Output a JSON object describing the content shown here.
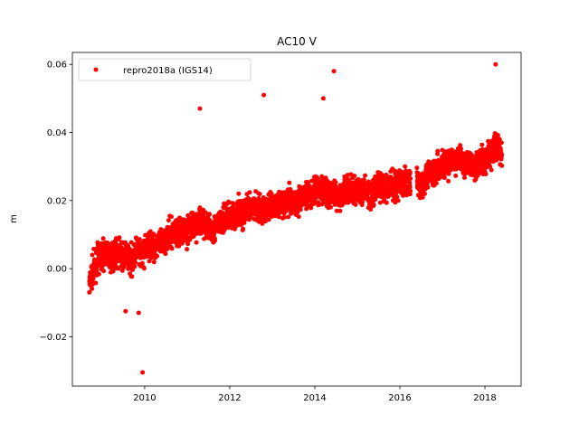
{
  "chart_data": {
    "type": "scatter",
    "title": "AC10 V",
    "xlabel": "",
    "ylabel": "m",
    "xlim": [
      2008.3,
      2018.85
    ],
    "ylim": [
      -0.0345,
      0.0635
    ],
    "xticks": [
      2010,
      2012,
      2014,
      2016,
      2018
    ],
    "xtick_labels": [
      "2010",
      "2012",
      "2014",
      "2016",
      "2018"
    ],
    "yticks": [
      -0.02,
      0.0,
      0.02,
      0.04,
      0.06
    ],
    "ytick_labels": [
      "−0.02",
      "0.00",
      "0.02",
      "0.04",
      "0.06"
    ],
    "grid": false,
    "legend_position": "top-left",
    "series": [
      {
        "name": "repro2018a (IGS14)",
        "color": "#ff0000",
        "marker": "circle",
        "x": [
          2008.7,
          2008.75,
          2008.8,
          2008.9,
          2009.0,
          2009.1,
          2009.2,
          2009.3,
          2009.4,
          2009.5,
          2009.6,
          2009.7,
          2009.8,
          2009.9,
          2010.0,
          2010.1,
          2010.2,
          2010.3,
          2010.4,
          2010.5,
          2010.6,
          2010.7,
          2010.8,
          2010.9,
          2011.0,
          2011.1,
          2011.2,
          2011.3,
          2011.4,
          2011.5,
          2011.6,
          2011.7,
          2011.8,
          2011.9,
          2012.0,
          2012.1,
          2012.2,
          2012.3,
          2012.4,
          2012.5,
          2012.6,
          2012.7,
          2012.8,
          2012.9,
          2013.0,
          2013.1,
          2013.2,
          2013.3,
          2013.4,
          2013.5,
          2013.6,
          2013.7,
          2013.8,
          2013.9,
          2014.0,
          2014.1,
          2014.2,
          2014.3,
          2014.4,
          2014.5,
          2014.6,
          2014.7,
          2014.8,
          2014.9,
          2015.0,
          2015.1,
          2015.2,
          2015.3,
          2015.4,
          2015.5,
          2015.6,
          2015.7,
          2015.8,
          2015.9,
          2016.0,
          2016.1,
          2016.2,
          2016.4,
          2016.5,
          2016.6,
          2016.7,
          2016.8,
          2016.9,
          2017.0,
          2017.1,
          2017.2,
          2017.3,
          2017.4,
          2017.5,
          2017.6,
          2017.7,
          2017.8,
          2017.9,
          2018.0,
          2018.1,
          2018.2,
          2018.3,
          2018.4
        ],
        "y": [
          -0.005,
          -0.002,
          0.0,
          0.003,
          0.004,
          0.005,
          0.003,
          0.004,
          0.005,
          0.003,
          0.004,
          0.002,
          0.006,
          0.004,
          0.005,
          0.007,
          0.006,
          0.008,
          0.007,
          0.009,
          0.01,
          0.011,
          0.01,
          0.012,
          0.011,
          0.013,
          0.012,
          0.014,
          0.013,
          0.012,
          0.011,
          0.013,
          0.014,
          0.015,
          0.016,
          0.015,
          0.017,
          0.016,
          0.018,
          0.017,
          0.019,
          0.018,
          0.017,
          0.018,
          0.019,
          0.018,
          0.02,
          0.019,
          0.021,
          0.02,
          0.019,
          0.021,
          0.022,
          0.021,
          0.023,
          0.022,
          0.024,
          0.021,
          0.023,
          0.022,
          0.021,
          0.023,
          0.024,
          0.022,
          0.023,
          0.022,
          0.024,
          0.021,
          0.023,
          0.025,
          0.024,
          0.023,
          0.025,
          0.024,
          0.026,
          0.025,
          0.027,
          0.025,
          0.024,
          0.027,
          0.029,
          0.028,
          0.03,
          0.031,
          0.03,
          0.032,
          0.031,
          0.033,
          0.03,
          0.032,
          0.031,
          0.03,
          0.032,
          0.031,
          0.033,
          0.035,
          0.036,
          0.034
        ],
        "outliers_x": [
          2009.86,
          2009.95,
          2011.3,
          2012.8,
          2014.45,
          2014.2,
          2018.25,
          2009.55
        ],
        "outliers_y": [
          -0.013,
          -0.0305,
          0.047,
          0.051,
          0.058,
          0.05,
          0.06,
          -0.0125
        ]
      }
    ]
  }
}
